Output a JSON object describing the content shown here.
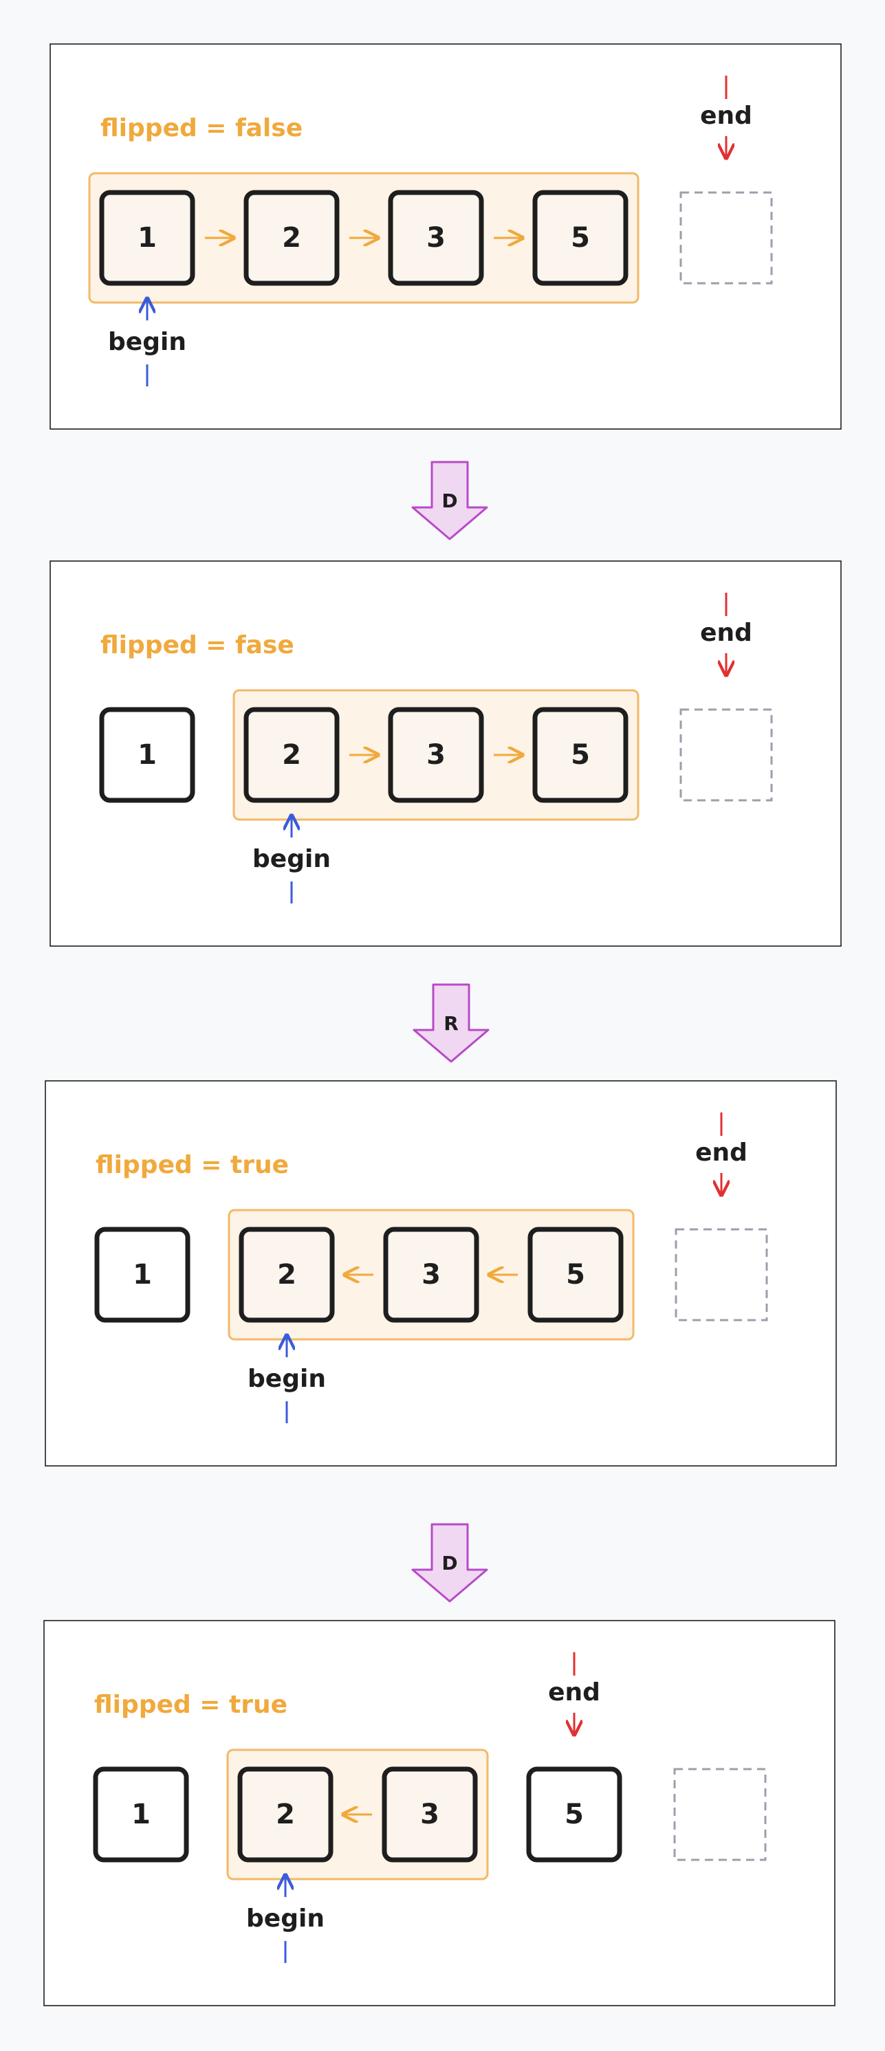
{
  "colors": {
    "background": "#f8f9fa",
    "panel_border": "#1e1e1e",
    "flag_text": "#f0a93c",
    "group_border": "#f2b968",
    "group_fill": "#fdf3e6",
    "node_border": "#1e1e1e",
    "node_fill_in_group": "#fbf5ee",
    "link_arrow": "#f0a93c",
    "begin_arrow": "#3b5bdb",
    "end_arrow": "#e03131",
    "sentinel_border": "#9aa0ab",
    "op_fill": "#f0d8f2",
    "op_border": "#b84ac8",
    "text": "#1e1e1e"
  },
  "labels": {
    "begin": "begin",
    "end": "end"
  },
  "operations": [
    "D",
    "R",
    "D"
  ],
  "panels": [
    {
      "flag_text": "flipped = false",
      "nodes": [
        "1",
        "2",
        "3",
        "5"
      ],
      "group": [
        0,
        3
      ],
      "links": "right",
      "begin_index": 0,
      "end_index": 4
    },
    {
      "flag_text": "flipped = fase",
      "nodes": [
        "1",
        "2",
        "3",
        "5"
      ],
      "group": [
        1,
        3
      ],
      "links": "right",
      "begin_index": 1,
      "end_index": 4
    },
    {
      "flag_text": "flipped = true",
      "nodes": [
        "1",
        "2",
        "3",
        "5"
      ],
      "group": [
        1,
        3
      ],
      "links": "left",
      "begin_index": 1,
      "end_index": 4
    },
    {
      "flag_text": "flipped = true",
      "nodes": [
        "1",
        "2",
        "3",
        "5"
      ],
      "group": [
        1,
        2
      ],
      "links": "left",
      "begin_index": 1,
      "end_index": 3
    }
  ]
}
